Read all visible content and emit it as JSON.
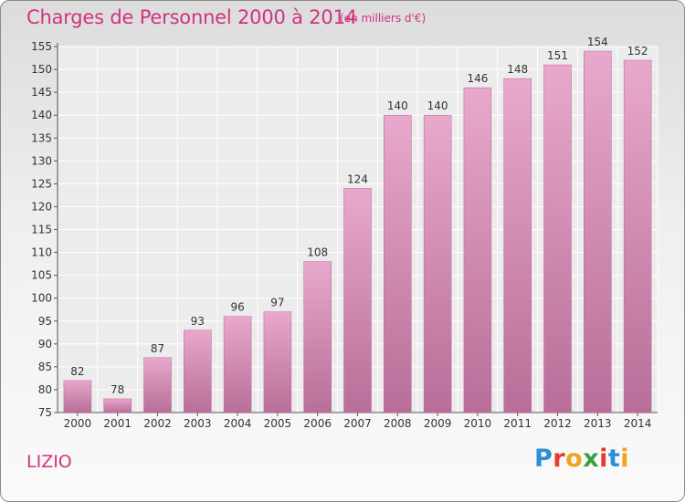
{
  "header": {
    "title": "Charges de Personnel 2000 à 2014",
    "subtitle": "(en milliers d'€)"
  },
  "footer": {
    "commune": "LIZIO",
    "logo_text": "Proxiti",
    "logo_colors": [
      "#2e8fd8",
      "#e63a2e",
      "#f2a21b",
      "#3aa040",
      "#e63a2e",
      "#2e8fd8",
      "#f2a21b"
    ]
  },
  "colors": {
    "bar_light": "#e8a8cc",
    "bar_dark": "#b86e98",
    "text_pink": "#d0347f"
  },
  "chart_data": {
    "type": "bar",
    "title": "Charges de Personnel 2000 à 2014",
    "subtitle": "(en milliers d'€)",
    "xlabel": "",
    "ylabel": "",
    "categories": [
      "2000",
      "2001",
      "2002",
      "2003",
      "2004",
      "2005",
      "2006",
      "2007",
      "2008",
      "2009",
      "2010",
      "2011",
      "2012",
      "2013",
      "2014"
    ],
    "values": [
      82,
      78,
      87,
      93,
      96,
      97,
      108,
      124,
      140,
      140,
      146,
      148,
      151,
      154,
      152
    ],
    "ylim": [
      75,
      155
    ],
    "yticks": [
      75,
      80,
      85,
      90,
      95,
      100,
      105,
      110,
      115,
      120,
      125,
      130,
      135,
      140,
      145,
      150,
      155
    ],
    "grid": true,
    "legend": "none"
  }
}
